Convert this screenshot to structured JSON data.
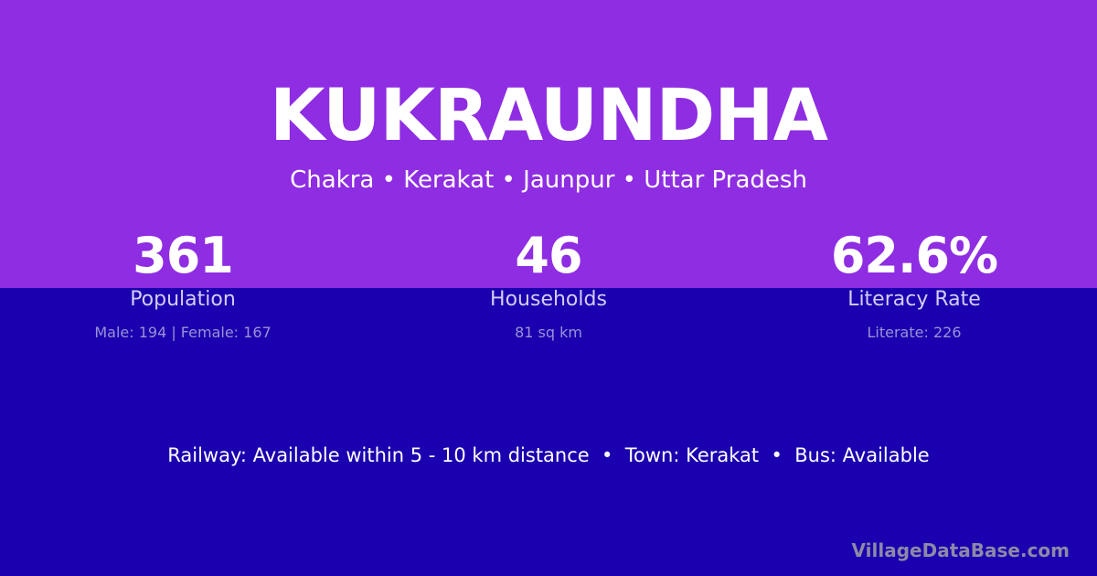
{
  "colors": {
    "top_bg": "#8e2de2",
    "bottom_bg": "#1a00ae"
  },
  "title": "KUKRAUNDHA",
  "subtitle": "Chakra • Kerakat • Jaunpur • Uttar Pradesh",
  "stats": [
    {
      "value": "361",
      "label": "Population",
      "detail": "Male: 194 | Female: 167"
    },
    {
      "value": "46",
      "label": "Households",
      "detail": "81 sq km"
    },
    {
      "value": "62.6%",
      "label": "Literacy Rate",
      "detail": "Literate: 226"
    }
  ],
  "info": "Railway: Available within 5 - 10 km distance  •  Town: Kerakat  •  Bus: Available",
  "brand": "VillageDataBase.com"
}
